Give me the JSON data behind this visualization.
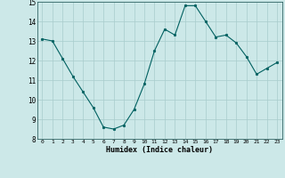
{
  "x": [
    0,
    1,
    2,
    3,
    4,
    5,
    6,
    7,
    8,
    9,
    10,
    11,
    12,
    13,
    14,
    15,
    16,
    17,
    18,
    19,
    20,
    21,
    22,
    23
  ],
  "y": [
    13.1,
    13.0,
    12.1,
    11.2,
    10.4,
    9.6,
    8.6,
    8.5,
    8.7,
    9.5,
    10.8,
    12.5,
    13.6,
    13.3,
    14.8,
    14.8,
    14.0,
    13.2,
    13.3,
    12.9,
    12.2,
    11.3,
    11.6,
    11.9
  ],
  "xlim": [
    -0.5,
    23.5
  ],
  "ylim": [
    8,
    15
  ],
  "yticks": [
    8,
    9,
    10,
    11,
    12,
    13,
    14,
    15
  ],
  "xticks": [
    0,
    1,
    2,
    3,
    4,
    5,
    6,
    7,
    8,
    9,
    10,
    11,
    12,
    13,
    14,
    15,
    16,
    17,
    18,
    19,
    20,
    21,
    22,
    23
  ],
  "xlabel": "Humidex (Indice chaleur)",
  "line_color": "#006060",
  "marker_color": "#006060",
  "bg_color": "#cce8e8",
  "grid_color": "#a8cccc",
  "figsize": [
    3.2,
    2.0
  ],
  "dpi": 100
}
